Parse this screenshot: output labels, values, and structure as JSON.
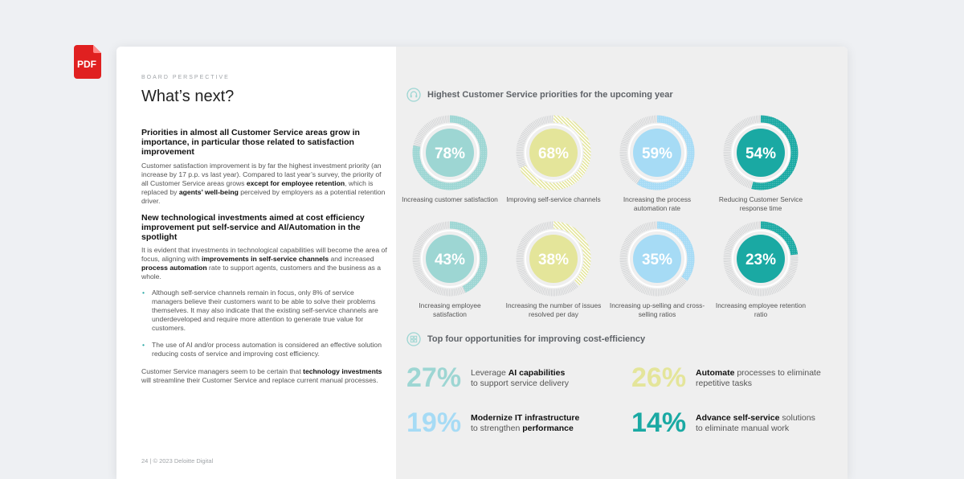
{
  "pdf_badge": {
    "label": "PDF",
    "color": "#e02020"
  },
  "left": {
    "eyebrow": "BOARD PERSPECTIVE",
    "title": "What’s next?",
    "heading1": "Priorities in almost all Customer Service areas grow in importance, in particular those related to satisfaction improvement",
    "para1": {
      "t1": "Customer satisfaction improvement is by far the highest investment priority (an increase by 17 p.p. vs last year). Compared to last year’s survey, the priority of all Customer Service areas grows ",
      "b1": "except for employee retention",
      "t2": ", which is replaced by ",
      "b2": "agents’ well-being",
      "t3": " perceived by employers as a potential retention driver."
    },
    "heading2": "New technological investments aimed at cost efficiency improvement put self-service and AI/Automation in the spotlight",
    "para2": {
      "t1": "It is evident that investments in technological capabilities will become the area of focus, aligning with ",
      "b1": "improvements in self-service channels",
      "t2": " and increased ",
      "b2": "process automation",
      "t3": " rate to support agents, customers and the business as a whole."
    },
    "bullet1": "Although self-service channels remain in focus, only 8% of service managers believe their customers want to be able to solve their problems themselves. It may also indicate that the existing self-service channels are underdeveloped and require more attention to generate true value for customers.",
    "bullet2": "The use of AI and/or process automation is considered an effective solution reducing costs of service and improving cost efficiency.",
    "para3": {
      "t1": "Customer Service managers seem to be certain that ",
      "b1": "technology investments",
      "t2": " will streamline their Customer Service and replace current manual processes."
    },
    "footer": "24 | © 2023 Deloitte Digital"
  },
  "priorities": {
    "title": "Highest Customer Service priorities for the upcoming year",
    "icon": "headset-icon",
    "items": [
      {
        "pct": "78%",
        "value": 78,
        "label": "Increasing customer satisfaction",
        "color": "#9dd6d3",
        "pattern": "dots"
      },
      {
        "pct": "68%",
        "value": 68,
        "label": "Improving self-service channels",
        "color": "#e4e59a",
        "pattern": "diag"
      },
      {
        "pct": "59%",
        "value": 59,
        "label": "Increasing the process automation rate",
        "color": "#a6dbf5",
        "pattern": "dots"
      },
      {
        "pct": "54%",
        "value": 54,
        "label": "Reducing Customer Service response time",
        "color": "#1aa9a3",
        "pattern": "dots"
      },
      {
        "pct": "43%",
        "value": 43,
        "label": "Increasing employee satisfaction",
        "color": "#9dd6d3",
        "pattern": "dots"
      },
      {
        "pct": "38%",
        "value": 38,
        "label": "Increasing the number of issues resolved per day",
        "color": "#e4e59a",
        "pattern": "diag"
      },
      {
        "pct": "35%",
        "value": 35,
        "label": "Increasing up-selling and cross-selling ratios",
        "color": "#a6dbf5",
        "pattern": "dots"
      },
      {
        "pct": "23%",
        "value": 23,
        "label": "Increasing employee retention ratio",
        "color": "#1aa9a3",
        "pattern": "dots"
      }
    ]
  },
  "opportunities": {
    "title": "Top four opportunities for improving cost-efficiency",
    "icon": "grid-icon",
    "items": [
      {
        "pct": "27%",
        "color": "#9dd6d3",
        "pre": "Leverage ",
        "bold": "AI capabilities",
        "post": "",
        "line2pre": "to support service delivery",
        "line2bold": ""
      },
      {
        "pct": "26%",
        "color": "#e4e59a",
        "pre": "",
        "bold": "Automate",
        "post": " processes to eliminate",
        "line2pre": "repetitive tasks",
        "line2bold": ""
      },
      {
        "pct": "19%",
        "color": "#a6dbf5",
        "pre": "",
        "bold": "Modernize IT infrastructure",
        "post": "",
        "line2pre": "to strengthen ",
        "line2bold": "performance"
      },
      {
        "pct": "14%",
        "color": "#1aa9a3",
        "pre": "",
        "bold": "Advance self-service",
        "post": " solutions",
        "line2pre": "to eliminate manual work",
        "line2bold": ""
      }
    ]
  }
}
